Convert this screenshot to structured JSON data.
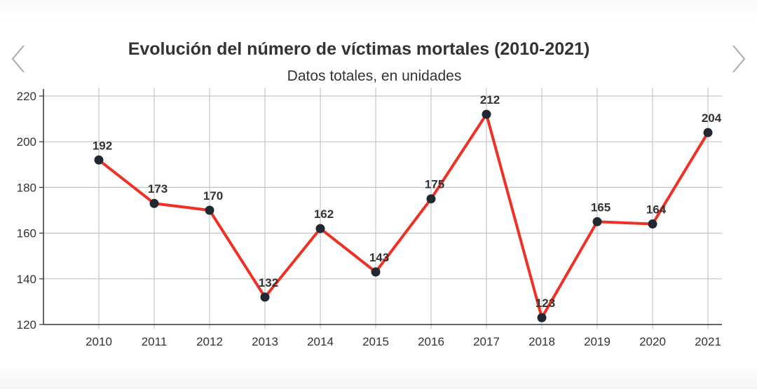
{
  "carousel": {
    "prev_icon": "chevron-left-icon",
    "next_icon": "chevron-right-icon"
  },
  "chart_data": {
    "type": "line",
    "title": "Evolución del número de víctimas mortales (2010-2021)",
    "subtitle": "Datos totales, en unidades",
    "xlabel": "",
    "ylabel": "",
    "categories": [
      "2010",
      "2011",
      "2012",
      "2013",
      "2014",
      "2015",
      "2016",
      "2017",
      "2018",
      "2019",
      "2020",
      "2021"
    ],
    "series": [
      {
        "values": [
          192,
          173,
          170,
          132,
          162,
          143,
          175,
          212,
          123,
          165,
          164,
          204
        ]
      }
    ],
    "data_labels": [
      "192",
      "173",
      "170",
      "132",
      "162",
      "143",
      "175",
      "212",
      "123",
      "165",
      "164",
      "204"
    ],
    "ylim": [
      120,
      220
    ],
    "yticks": [
      120,
      140,
      160,
      180,
      200,
      220
    ],
    "grid": true,
    "legend": "none",
    "colors": {
      "line": "#ee3124",
      "marker": "#222831",
      "grid": "#c4c4c4",
      "axis": "#333333"
    }
  }
}
